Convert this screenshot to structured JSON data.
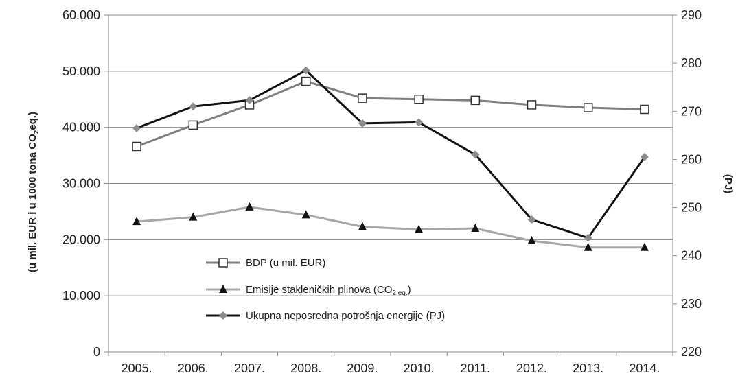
{
  "chart_data": {
    "type": "line",
    "categories": [
      "2005.",
      "2006.",
      "2007.",
      "2008.",
      "2009.",
      "2010.",
      "2011.",
      "2012.",
      "2013.",
      "2014."
    ],
    "y_left": {
      "label_main": "(u mil. EUR i u 1000 tona CO",
      "label_sub": "2",
      "label_end": "eq.)",
      "range": [
        0,
        60000
      ],
      "ticks": [
        "0",
        "10.000",
        "20.000",
        "30.000",
        "40.000",
        "50.000",
        "60.000"
      ],
      "tick_values": [
        0,
        10000,
        20000,
        30000,
        40000,
        50000,
        60000
      ]
    },
    "y_right": {
      "label": "(PJ)",
      "range": [
        220,
        290
      ],
      "ticks": [
        "220",
        "230",
        "240",
        "250",
        "260",
        "270",
        "280",
        "290"
      ],
      "tick_values": [
        220,
        230,
        240,
        250,
        260,
        270,
        280,
        290
      ]
    },
    "grid": true,
    "legend_position": "center-left",
    "series": [
      {
        "key": "bdp",
        "name": "BDP (u mil. EUR)",
        "axis": "left",
        "color": "#7f7f7f",
        "marker": "square",
        "values": [
          36600,
          40400,
          44000,
          48200,
          45200,
          45000,
          44800,
          44000,
          43500,
          43200
        ]
      },
      {
        "key": "emisije",
        "name_main": "Emisije stakleničkih plinova (CO",
        "name_sub": "2 eq.",
        "name_end": ")",
        "axis": "left",
        "color": "#a6a6a6",
        "marker": "triangle",
        "values": [
          23200,
          24000,
          25800,
          24400,
          22300,
          21800,
          22000,
          19800,
          18600,
          18600
        ]
      },
      {
        "key": "energija",
        "name": "Ukupna neposredna potrošnja energije (PJ)",
        "axis": "right",
        "color": "#111111",
        "marker_color": "#8c8c8c",
        "marker": "diamond",
        "values": [
          266.5,
          271.0,
          272.3,
          278.5,
          267.5,
          267.7,
          261.0,
          247.5,
          243.7,
          260.5
        ]
      }
    ]
  }
}
